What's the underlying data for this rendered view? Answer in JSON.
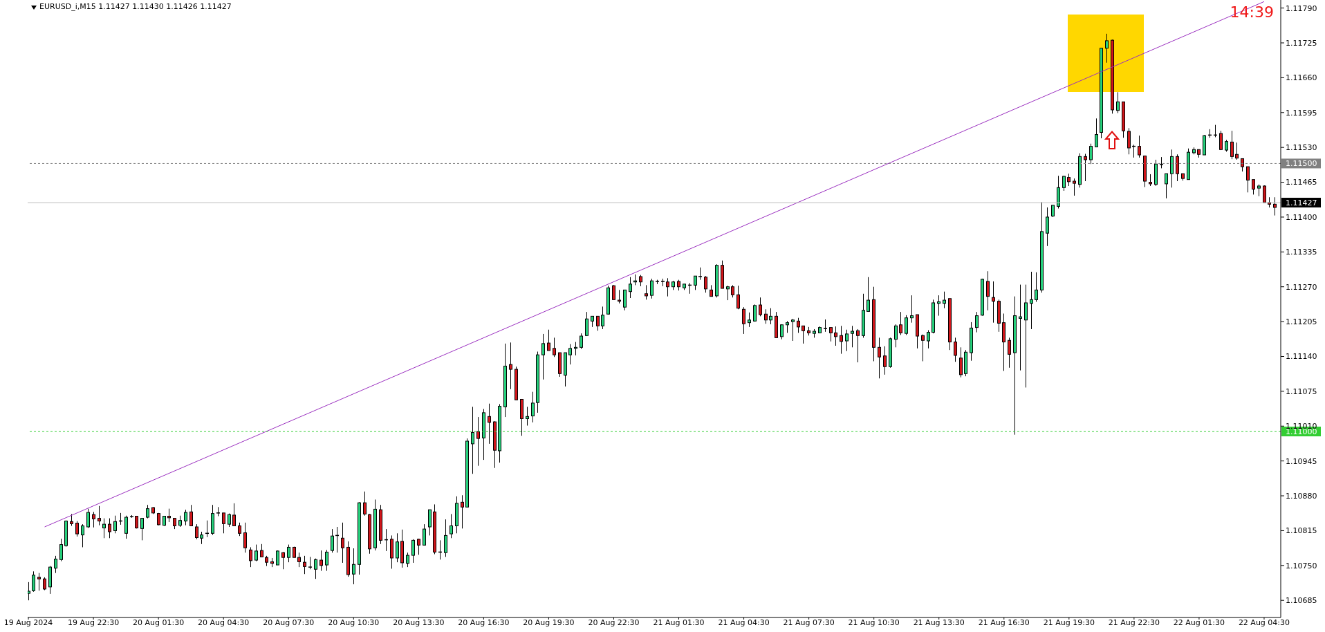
{
  "chart_data": {
    "type": "candlestick",
    "title": "EURUSD_i,M15 1.11427 1.11430 1.11426 1.11427",
    "x": [
      "2024-08-19T19:30",
      "2024-08-19T19:45",
      "2024-08-19T20:00",
      "2024-08-19T20:15",
      "2024-08-19T20:30",
      "2024-08-19T20:45",
      "2024-08-19T21:00",
      "2024-08-19T21:15",
      "2024-08-19T21:30",
      "2024-08-19T21:45",
      "2024-08-19T22:00",
      "2024-08-19T22:15",
      "2024-08-19T22:30",
      "2024-08-19T22:45",
      "2024-08-19T23:00",
      "2024-08-19T23:15",
      "2024-08-19T23:30",
      "2024-08-19T23:45",
      "2024-08-20T00:00",
      "2024-08-20T00:15",
      "2024-08-20T00:30",
      "2024-08-20T00:45",
      "2024-08-20T01:00",
      "2024-08-20T01:15",
      "2024-08-20T01:30",
      "2024-08-20T01:45",
      "2024-08-20T02:00",
      "2024-08-20T02:15",
      "2024-08-20T02:30",
      "2024-08-20T02:45",
      "2024-08-20T03:00",
      "2024-08-20T03:15",
      "2024-08-20T03:30",
      "2024-08-20T03:45",
      "2024-08-20T04:00",
      "2024-08-20T04:15",
      "2024-08-20T04:30",
      "2024-08-20T04:45",
      "2024-08-20T05:00",
      "2024-08-20T05:15",
      "2024-08-20T05:30",
      "2024-08-20T05:45",
      "2024-08-20T06:00",
      "2024-08-20T06:15",
      "2024-08-20T06:30",
      "2024-08-20T06:45",
      "2024-08-20T07:00",
      "2024-08-20T07:15",
      "2024-08-20T07:30",
      "2024-08-20T07:45",
      "2024-08-20T08:00",
      "2024-08-20T08:15",
      "2024-08-20T08:30",
      "2024-08-20T08:45",
      "2024-08-20T09:00",
      "2024-08-20T09:15",
      "2024-08-20T09:30",
      "2024-08-20T09:45",
      "2024-08-20T10:00",
      "2024-08-20T10:15",
      "2024-08-20T10:30",
      "2024-08-20T10:45",
      "2024-08-20T11:00",
      "2024-08-20T11:15",
      "2024-08-20T11:30",
      "2024-08-20T11:45",
      "2024-08-20T12:00",
      "2024-08-20T12:15",
      "2024-08-20T12:30",
      "2024-08-20T12:45",
      "2024-08-20T13:00",
      "2024-08-20T13:15",
      "2024-08-20T13:30",
      "2024-08-20T13:45",
      "2024-08-20T14:00",
      "2024-08-20T14:15",
      "2024-08-20T14:30",
      "2024-08-20T14:45",
      "2024-08-20T15:00",
      "2024-08-20T15:15",
      "2024-08-20T15:30",
      "2024-08-20T15:45",
      "2024-08-20T16:00",
      "2024-08-20T16:15",
      "2024-08-20T16:30",
      "2024-08-20T16:45",
      "2024-08-20T17:00",
      "2024-08-20T17:15",
      "2024-08-20T17:30",
      "2024-08-20T17:45",
      "2024-08-20T18:00",
      "2024-08-20T18:15",
      "2024-08-20T18:30",
      "2024-08-20T18:45",
      "2024-08-20T19:00",
      "2024-08-20T19:15",
      "2024-08-20T19:30",
      "2024-08-20T19:45",
      "2024-08-20T20:00",
      "2024-08-20T20:15",
      "2024-08-20T20:30",
      "2024-08-20T20:45",
      "2024-08-20T21:00",
      "2024-08-20T21:15",
      "2024-08-20T21:30",
      "2024-08-20T21:45",
      "2024-08-20T22:00",
      "2024-08-20T22:15",
      "2024-08-20T22:30",
      "2024-08-20T22:45",
      "2024-08-20T23:00",
      "2024-08-20T23:15",
      "2024-08-20T23:30",
      "2024-08-20T23:45",
      "2024-08-21T00:00",
      "2024-08-21T00:15",
      "2024-08-21T00:30",
      "2024-08-21T00:45",
      "2024-08-21T01:00",
      "2024-08-21T01:15",
      "2024-08-21T01:30",
      "2024-08-21T01:45",
      "2024-08-21T02:00",
      "2024-08-21T02:15",
      "2024-08-21T02:30",
      "2024-08-21T02:45",
      "2024-08-21T03:00",
      "2024-08-21T03:15",
      "2024-08-21T03:30",
      "2024-08-21T03:45",
      "2024-08-21T04:00",
      "2024-08-21T04:15",
      "2024-08-21T04:30",
      "2024-08-21T04:45",
      "2024-08-21T05:00",
      "2024-08-21T05:15",
      "2024-08-21T05:30",
      "2024-08-21T05:45",
      "2024-08-21T06:00",
      "2024-08-21T06:15",
      "2024-08-21T06:30",
      "2024-08-21T06:45",
      "2024-08-21T07:00",
      "2024-08-21T07:15",
      "2024-08-21T07:30",
      "2024-08-21T07:45",
      "2024-08-21T08:00",
      "2024-08-21T08:15",
      "2024-08-21T08:30",
      "2024-08-21T08:45",
      "2024-08-21T09:00",
      "2024-08-21T09:15",
      "2024-08-21T09:30",
      "2024-08-21T09:45",
      "2024-08-21T10:00",
      "2024-08-21T10:15",
      "2024-08-21T10:30",
      "2024-08-21T10:45",
      "2024-08-21T11:00",
      "2024-08-21T11:15",
      "2024-08-21T11:30",
      "2024-08-21T11:45",
      "2024-08-21T12:00",
      "2024-08-21T12:15",
      "2024-08-21T12:30",
      "2024-08-21T12:45",
      "2024-08-21T13:00",
      "2024-08-21T13:15",
      "2024-08-21T13:30",
      "2024-08-21T13:45",
      "2024-08-21T14:00",
      "2024-08-21T14:15",
      "2024-08-21T14:30",
      "2024-08-21T14:45",
      "2024-08-21T15:00",
      "2024-08-21T15:15",
      "2024-08-21T15:30",
      "2024-08-21T15:45",
      "2024-08-21T16:00",
      "2024-08-21T16:15",
      "2024-08-21T16:30",
      "2024-08-21T16:45",
      "2024-08-21T17:00",
      "2024-08-21T17:15",
      "2024-08-21T17:30",
      "2024-08-21T17:45",
      "2024-08-21T18:00",
      "2024-08-21T18:15",
      "2024-08-21T18:30",
      "2024-08-21T18:45",
      "2024-08-21T19:00",
      "2024-08-21T19:15",
      "2024-08-21T19:30",
      "2024-08-21T19:45",
      "2024-08-21T20:00",
      "2024-08-21T20:15",
      "2024-08-21T20:30",
      "2024-08-21T20:45",
      "2024-08-21T21:00",
      "2024-08-21T21:15",
      "2024-08-21T21:30",
      "2024-08-21T21:45",
      "2024-08-21T22:00",
      "2024-08-21T22:15",
      "2024-08-21T22:30",
      "2024-08-21T22:45",
      "2024-08-21T23:00",
      "2024-08-21T23:15",
      "2024-08-21T23:30",
      "2024-08-21T23:45",
      "2024-08-22T00:00",
      "2024-08-22T00:15",
      "2024-08-22T00:30",
      "2024-08-22T00:45",
      "2024-08-22T01:00",
      "2024-08-22T01:15",
      "2024-08-22T01:30",
      "2024-08-22T01:45",
      "2024-08-22T02:00",
      "2024-08-22T02:15",
      "2024-08-22T02:30",
      "2024-08-22T02:45",
      "2024-08-22T03:00",
      "2024-08-22T03:15",
      "2024-08-22T03:30",
      "2024-08-22T03:45",
      "2024-08-22T04:00",
      "2024-08-22T04:15",
      "2024-08-22T04:30",
      "2024-08-22T04:45",
      "2024-08-22T05:00"
    ],
    "ohlc": [
      [
        1.10698,
        1.10719,
        1.10685,
        1.10702
      ],
      [
        1.10703,
        1.10739,
        1.10701,
        1.10732
      ],
      [
        1.10728,
        1.10736,
        1.10703,
        1.10725
      ],
      [
        1.10725,
        1.10728,
        1.10704,
        1.10706
      ],
      [
        1.1071,
        1.10749,
        1.10697,
        1.10747
      ],
      [
        1.10745,
        1.10768,
        1.10736,
        1.10762
      ],
      [
        1.10761,
        1.108,
        1.10758,
        1.10789
      ],
      [
        1.10787,
        1.10834,
        1.10785,
        1.10833
      ],
      [
        1.10832,
        1.10846,
        1.10824,
        1.10828
      ],
      [
        1.10829,
        1.10833,
        1.10804,
        1.10809
      ],
      [
        1.10807,
        1.10827,
        1.10784,
        1.10824
      ],
      [
        1.10822,
        1.10856,
        1.1082,
        1.10849
      ],
      [
        1.10845,
        1.1085,
        1.10821,
        1.10837
      ],
      [
        1.10838,
        1.10861,
        1.10825,
        1.10833
      ],
      [
        1.1082,
        1.10838,
        1.10801,
        1.10827
      ],
      [
        1.10827,
        1.10838,
        1.10801,
        1.10813
      ],
      [
        1.10815,
        1.10843,
        1.1081,
        1.10832
      ],
      [
        1.10833,
        1.10848,
        1.10826,
        1.10833
      ],
      [
        1.1081,
        1.10843,
        1.108,
        1.1084
      ],
      [
        1.10841,
        1.10844,
        1.10839,
        1.10841
      ],
      [
        1.10842,
        1.10842,
        1.10819,
        1.1082
      ],
      [
        1.10819,
        1.10838,
        1.10797,
        1.10838
      ],
      [
        1.1084,
        1.10863,
        1.10838,
        1.10856
      ],
      [
        1.10858,
        1.10859,
        1.10846,
        1.10848
      ],
      [
        1.10847,
        1.10848,
        1.10825,
        1.10826
      ],
      [
        1.10825,
        1.10842,
        1.10824,
        1.10842
      ],
      [
        1.10842,
        1.10856,
        1.10831,
        1.10839
      ],
      [
        1.10838,
        1.10838,
        1.10818,
        1.10824
      ],
      [
        1.10825,
        1.10843,
        1.10822,
        1.10834
      ],
      [
        1.10833,
        1.10854,
        1.10825,
        1.10849
      ],
      [
        1.1085,
        1.10863,
        1.10824,
        1.10824
      ],
      [
        1.10822,
        1.10827,
        1.10799,
        1.10802
      ],
      [
        1.10801,
        1.10813,
        1.1079,
        1.10807
      ],
      [
        1.1081,
        1.10834,
        1.10803,
        1.1081
      ],
      [
        1.1081,
        1.10863,
        1.10807,
        1.10847
      ],
      [
        1.10848,
        1.10859,
        1.10842,
        1.10848
      ],
      [
        1.10848,
        1.10848,
        1.1081,
        1.10828
      ],
      [
        1.10827,
        1.10847,
        1.10822,
        1.10845
      ],
      [
        1.10844,
        1.10866,
        1.10824,
        1.10824
      ],
      [
        1.10824,
        1.1083,
        1.10805,
        1.1081
      ],
      [
        1.10811,
        1.1083,
        1.10774,
        1.10783
      ],
      [
        1.10779,
        1.10784,
        1.10747,
        1.10759
      ],
      [
        1.1076,
        1.10789,
        1.10758,
        1.10777
      ],
      [
        1.10778,
        1.1079,
        1.10766,
        1.10766
      ],
      [
        1.10765,
        1.10768,
        1.10749,
        1.10756
      ],
      [
        1.10757,
        1.10764,
        1.10747,
        1.10754
      ],
      [
        1.10751,
        1.10778,
        1.10751,
        1.10777
      ],
      [
        1.10774,
        1.10775,
        1.10743,
        1.10765
      ],
      [
        1.10765,
        1.10789,
        1.10756,
        1.10784
      ],
      [
        1.10784,
        1.10785,
        1.10765,
        1.10765
      ],
      [
        1.10765,
        1.10774,
        1.10747,
        1.10757
      ],
      [
        1.10756,
        1.10768,
        1.10734,
        1.10748
      ],
      [
        1.10747,
        1.10766,
        1.10743,
        1.10747
      ],
      [
        1.10743,
        1.10763,
        1.10725,
        1.10761
      ],
      [
        1.1076,
        1.10778,
        1.1074,
        1.1075
      ],
      [
        1.10751,
        1.10779,
        1.1074,
        1.10775
      ],
      [
        1.10778,
        1.10818,
        1.10774,
        1.10805
      ],
      [
        1.10806,
        1.10822,
        1.10774,
        1.10806
      ],
      [
        1.10801,
        1.1083,
        1.10755,
        1.10783
      ],
      [
        1.10784,
        1.10795,
        1.10729,
        1.10733
      ],
      [
        1.10734,
        1.10782,
        1.10715,
        1.10752
      ],
      [
        1.10752,
        1.10868,
        1.10733,
        1.10867
      ],
      [
        1.10867,
        1.10888,
        1.10843,
        1.10846
      ],
      [
        1.10845,
        1.10846,
        1.10772,
        1.10781
      ],
      [
        1.10783,
        1.10873,
        1.10778,
        1.10855
      ],
      [
        1.10854,
        1.10863,
        1.1079,
        1.10797
      ],
      [
        1.10798,
        1.10818,
        1.10777,
        1.10798
      ],
      [
        1.10799,
        1.10806,
        1.10744,
        1.10764
      ],
      [
        1.10764,
        1.1081,
        1.10756,
        1.10794
      ],
      [
        1.10795,
        1.10817,
        1.10746,
        1.10755
      ],
      [
        1.10754,
        1.10774,
        1.10747,
        1.10769
      ],
      [
        1.10769,
        1.10799,
        1.10755,
        1.10797
      ],
      [
        1.10799,
        1.108,
        1.1077,
        1.10788
      ],
      [
        1.10788,
        1.10827,
        1.10788,
        1.10818
      ],
      [
        1.10822,
        1.10854,
        1.10806,
        1.10854
      ],
      [
        1.1085,
        1.10864,
        1.10771,
        1.10775
      ],
      [
        1.10775,
        1.10797,
        1.10761,
        1.10775
      ],
      [
        1.10774,
        1.10836,
        1.10766,
        1.10806
      ],
      [
        1.10809,
        1.10846,
        1.10801,
        1.10824
      ],
      [
        1.10824,
        1.10879,
        1.1081,
        1.10866
      ],
      [
        1.10868,
        1.10881,
        1.10819,
        1.10859
      ],
      [
        1.10859,
        1.10987,
        1.10859,
        1.10982
      ],
      [
        1.10977,
        1.11046,
        1.10921,
        1.10998
      ],
      [
        1.11,
        1.11027,
        1.10936,
        1.10987
      ],
      [
        1.10988,
        1.11042,
        1.10947,
        1.11035
      ],
      [
        1.11028,
        1.11052,
        1.10977,
        1.11017
      ],
      [
        1.11018,
        1.11019,
        1.10932,
        1.10965
      ],
      [
        1.10964,
        1.11051,
        1.10942,
        1.11047
      ],
      [
        1.11046,
        1.11164,
        1.11027,
        1.11122
      ],
      [
        1.11125,
        1.11166,
        1.11079,
        1.11116
      ],
      [
        1.11116,
        1.11121,
        1.11059,
        1.11059
      ],
      [
        1.1106,
        1.1106,
        1.10992,
        1.11024
      ],
      [
        1.11024,
        1.11046,
        1.11011,
        1.11028
      ],
      [
        1.11029,
        1.11074,
        1.11017,
        1.11053
      ],
      [
        1.11054,
        1.11149,
        1.11035,
        1.11143
      ],
      [
        1.11143,
        1.11182,
        1.11097,
        1.11164
      ],
      [
        1.11165,
        1.1119,
        1.11151,
        1.11151
      ],
      [
        1.11155,
        1.11175,
        1.11139,
        1.11143
      ],
      [
        1.11147,
        1.11147,
        1.11102,
        1.11108
      ],
      [
        1.11105,
        1.11147,
        1.11084,
        1.11147
      ],
      [
        1.11143,
        1.11163,
        1.11125,
        1.11155
      ],
      [
        1.11155,
        1.11167,
        1.11142,
        1.11157
      ],
      [
        1.11157,
        1.11183,
        1.11154,
        1.11178
      ],
      [
        1.11179,
        1.11223,
        1.11178,
        1.1121
      ],
      [
        1.11206,
        1.11215,
        1.11195,
        1.11215
      ],
      [
        1.11215,
        1.11215,
        1.11188,
        1.11197
      ],
      [
        1.11197,
        1.11233,
        1.11191,
        1.11217
      ],
      [
        1.11219,
        1.11272,
        1.11218,
        1.11268
      ],
      [
        1.11272,
        1.11273,
        1.11246,
        1.11246
      ],
      [
        1.11245,
        1.11264,
        1.11239,
        1.11243
      ],
      [
        1.11232,
        1.11264,
        1.11226,
        1.11264
      ],
      [
        1.11261,
        1.11288,
        1.11249,
        1.11275
      ],
      [
        1.11279,
        1.11293,
        1.11273,
        1.11281
      ],
      [
        1.11289,
        1.11292,
        1.11271,
        1.11279
      ],
      [
        1.11257,
        1.11273,
        1.11246,
        1.11253
      ],
      [
        1.11254,
        1.11285,
        1.11248,
        1.11281
      ],
      [
        1.1128,
        1.11283,
        1.11275,
        1.1128
      ],
      [
        1.1128,
        1.11285,
        1.11271,
        1.1128
      ],
      [
        1.11279,
        1.11286,
        1.11252,
        1.1127
      ],
      [
        1.1127,
        1.11281,
        1.11264,
        1.11279
      ],
      [
        1.1128,
        1.11283,
        1.11263,
        1.1127
      ],
      [
        1.11268,
        1.11275,
        1.11264,
        1.11275
      ],
      [
        1.11273,
        1.11277,
        1.11257,
        1.11273
      ],
      [
        1.11273,
        1.1129,
        1.11264,
        1.1129
      ],
      [
        1.11289,
        1.11306,
        1.11283,
        1.11289
      ],
      [
        1.11288,
        1.1129,
        1.11259,
        1.11266
      ],
      [
        1.11264,
        1.11273,
        1.11252,
        1.11252
      ],
      [
        1.11253,
        1.11312,
        1.1125,
        1.1131
      ],
      [
        1.1131,
        1.11319,
        1.11267,
        1.11267
      ],
      [
        1.11266,
        1.11272,
        1.11245,
        1.1127
      ],
      [
        1.1127,
        1.11273,
        1.1125,
        1.11255
      ],
      [
        1.11255,
        1.11272,
        1.11228,
        1.1123
      ],
      [
        1.11228,
        1.11232,
        1.11182,
        1.11201
      ],
      [
        1.11203,
        1.11222,
        1.11195,
        1.11208
      ],
      [
        1.11206,
        1.11237,
        1.11205,
        1.11235
      ],
      [
        1.11236,
        1.1125,
        1.11215,
        1.11218
      ],
      [
        1.11219,
        1.11228,
        1.11201,
        1.11208
      ],
      [
        1.11208,
        1.1123,
        1.112,
        1.11215
      ],
      [
        1.11215,
        1.11223,
        1.11175,
        1.11175
      ],
      [
        1.11177,
        1.112,
        1.11172,
        1.11199
      ],
      [
        1.11199,
        1.11206,
        1.11184,
        1.11203
      ],
      [
        1.11205,
        1.1121,
        1.11169,
        1.11208
      ],
      [
        1.11206,
        1.11212,
        1.11184,
        1.11195
      ],
      [
        1.11197,
        1.11197,
        1.11164,
        1.11188
      ],
      [
        1.11188,
        1.11195,
        1.11179,
        1.11184
      ],
      [
        1.11183,
        1.11191,
        1.11175,
        1.11187
      ],
      [
        1.11184,
        1.11196,
        1.11184,
        1.11194
      ],
      [
        1.11192,
        1.11209,
        1.11186,
        1.11192
      ],
      [
        1.11194,
        1.11194,
        1.11168,
        1.11184
      ],
      [
        1.11184,
        1.11196,
        1.1116,
        1.11177
      ],
      [
        1.11179,
        1.11197,
        1.11145,
        1.11168
      ],
      [
        1.11169,
        1.1119,
        1.1115,
        1.11182
      ],
      [
        1.11183,
        1.11197,
        1.11157,
        1.11187
      ],
      [
        1.11188,
        1.11191,
        1.11129,
        1.11179
      ],
      [
        1.11179,
        1.11257,
        1.11175,
        1.11226
      ],
      [
        1.11224,
        1.11288,
        1.11224,
        1.11245
      ],
      [
        1.11246,
        1.1127,
        1.11131,
        1.11157
      ],
      [
        1.11157,
        1.11175,
        1.11099,
        1.11139
      ],
      [
        1.11141,
        1.11159,
        1.11106,
        1.11121
      ],
      [
        1.11121,
        1.11175,
        1.11119,
        1.11173
      ],
      [
        1.11172,
        1.112,
        1.11157,
        1.11197
      ],
      [
        1.11199,
        1.11223,
        1.1118,
        1.11184
      ],
      [
        1.11183,
        1.11217,
        1.1118,
        1.11212
      ],
      [
        1.11212,
        1.11254,
        1.11203,
        1.11216
      ],
      [
        1.11218,
        1.11218,
        1.11155,
        1.11178
      ],
      [
        1.11179,
        1.11181,
        1.11131,
        1.1117
      ],
      [
        1.11169,
        1.11189,
        1.11155,
        1.11185
      ],
      [
        1.11185,
        1.11246,
        1.11183,
        1.1124
      ],
      [
        1.11239,
        1.11254,
        1.11216,
        1.11242
      ],
      [
        1.11239,
        1.11261,
        1.1123,
        1.11245
      ],
      [
        1.11248,
        1.11248,
        1.11152,
        1.11167
      ],
      [
        1.11167,
        1.11175,
        1.1113,
        1.11142
      ],
      [
        1.11137,
        1.11157,
        1.11101,
        1.11106
      ],
      [
        1.11108,
        1.11152,
        1.11103,
        1.11148
      ],
      [
        1.11147,
        1.11204,
        1.11132,
        1.11193
      ],
      [
        1.11194,
        1.11223,
        1.11185,
        1.11216
      ],
      [
        1.11217,
        1.11285,
        1.11216,
        1.11284
      ],
      [
        1.1128,
        1.11299,
        1.11226,
        1.11252
      ],
      [
        1.1125,
        1.1128,
        1.11203,
        1.11243
      ],
      [
        1.11243,
        1.11246,
        1.11186,
        1.11202
      ],
      [
        1.11203,
        1.1122,
        1.11113,
        1.11167
      ],
      [
        1.1117,
        1.11175,
        1.11119,
        1.11144
      ],
      [
        1.11147,
        1.11252,
        1.10994,
        1.11216
      ],
      [
        1.11211,
        1.11274,
        1.11114,
        1.11214
      ],
      [
        1.11208,
        1.11274,
        1.11082,
        1.1124
      ],
      [
        1.11239,
        1.11298,
        1.11191,
        1.11246
      ],
      [
        1.11246,
        1.11297,
        1.11242,
        1.11264
      ],
      [
        1.11264,
        1.11428,
        1.11259,
        1.11373
      ],
      [
        1.1137,
        1.11418,
        1.11346,
        1.114
      ],
      [
        1.11402,
        1.11422,
        1.114,
        1.11422
      ],
      [
        1.1142,
        1.11477,
        1.11416,
        1.11455
      ],
      [
        1.11455,
        1.11477,
        1.11449,
        1.11476
      ],
      [
        1.11474,
        1.11481,
        1.11458,
        1.11466
      ],
      [
        1.11467,
        1.11472,
        1.1144,
        1.11463
      ],
      [
        1.11461,
        1.11519,
        1.11455,
        1.11513
      ],
      [
        1.11513,
        1.11518,
        1.11467,
        1.11507
      ],
      [
        1.11507,
        1.11537,
        1.11499,
        1.11532
      ],
      [
        1.11531,
        1.11584,
        1.11531,
        1.11554
      ],
      [
        1.11558,
        1.11715,
        1.11547,
        1.11715
      ],
      [
        1.11715,
        1.11742,
        1.11688,
        1.11729
      ],
      [
        1.1173,
        1.11731,
        1.11593,
        1.116
      ],
      [
        1.11599,
        1.11633,
        1.11594,
        1.11615
      ],
      [
        1.11615,
        1.11615,
        1.11548,
        1.11561
      ],
      [
        1.1156,
        1.11566,
        1.11517,
        1.11529
      ],
      [
        1.11532,
        1.11535,
        1.11511,
        1.11532
      ],
      [
        1.11532,
        1.11552,
        1.11511,
        1.11516
      ],
      [
        1.11514,
        1.11514,
        1.11456,
        1.11467
      ],
      [
        1.11465,
        1.1148,
        1.11458,
        1.11462
      ],
      [
        1.11461,
        1.11507,
        1.11458,
        1.11499
      ],
      [
        1.11498,
        1.11512,
        1.11491,
        1.11498
      ],
      [
        1.11462,
        1.11481,
        1.11435,
        1.11481
      ],
      [
        1.11481,
        1.11526,
        1.11455,
        1.11513
      ],
      [
        1.11513,
        1.11517,
        1.11467,
        1.11481
      ],
      [
        1.11481,
        1.11481,
        1.11468,
        1.11472
      ],
      [
        1.1147,
        1.11528,
        1.1147,
        1.11521
      ],
      [
        1.1152,
        1.1153,
        1.11517,
        1.11526
      ],
      [
        1.11526,
        1.11526,
        1.11511,
        1.11517
      ],
      [
        1.11516,
        1.11553,
        1.11516,
        1.11552
      ],
      [
        1.11553,
        1.11564,
        1.11548,
        1.11553
      ],
      [
        1.11553,
        1.11572,
        1.11549,
        1.11553
      ],
      [
        1.11556,
        1.11561,
        1.11525,
        1.11526
      ],
      [
        1.11525,
        1.11544,
        1.11522,
        1.11541
      ],
      [
        1.1154,
        1.11561,
        1.11508,
        1.11513
      ],
      [
        1.11517,
        1.11539,
        1.11507,
        1.1151
      ],
      [
        1.11509,
        1.11509,
        1.11485,
        1.11494
      ],
      [
        1.11494,
        1.11494,
        1.11446,
        1.11469
      ],
      [
        1.1147,
        1.1147,
        1.11442,
        1.11452
      ],
      [
        1.11454,
        1.11461,
        1.11439,
        1.11458
      ],
      [
        1.11458,
        1.11459,
        1.11427,
        1.11427
      ],
      [
        1.11427,
        1.11437,
        1.11418,
        1.11424
      ],
      [
        1.11424,
        1.11437,
        1.11403,
        1.11418
      ]
    ],
    "colors": [
      "#26d07c",
      "#26d07c",
      "#d0161b",
      "#d0161b",
      "#26d07c",
      "#26d07c",
      "#26d07c",
      "#26d07c",
      "#d0161b",
      "#d0161b",
      "#26d07c",
      "#26d07c",
      "#d0161b",
      "#d0161b",
      "#26d07c",
      "#d0161b",
      "#26d07c",
      "#000000",
      "#26d07c",
      "#000000",
      "#d0161b",
      "#26d07c",
      "#26d07c",
      "#d0161b",
      "#d0161b",
      "#26d07c",
      "#d0161b",
      "#d0161b",
      "#26d07c",
      "#26d07c",
      "#d0161b",
      "#d0161b",
      "#26d07c",
      "#000000",
      "#26d07c",
      "#000000",
      "#d0161b",
      "#26d07c",
      "#d0161b",
      "#d0161b",
      "#d0161b",
      "#d0161b",
      "#26d07c",
      "#d0161b",
      "#d0161b",
      "#d0161b",
      "#26d07c",
      "#d0161b",
      "#26d07c",
      "#d0161b",
      "#d0161b",
      "#d0161b",
      "#000000",
      "#26d07c",
      "#d0161b",
      "#26d07c",
      "#26d07c",
      "#000000",
      "#d0161b",
      "#d0161b",
      "#26d07c",
      "#26d07c",
      "#d0161b",
      "#d0161b",
      "#26d07c",
      "#d0161b",
      "#000000",
      "#d0161b",
      "#26d07c",
      "#d0161b",
      "#26d07c",
      "#26d07c",
      "#d0161b",
      "#26d07c",
      "#26d07c",
      "#d0161b",
      "#000000",
      "#26d07c",
      "#26d07c",
      "#26d07c",
      "#d0161b",
      "#26d07c",
      "#26d07c",
      "#d0161b",
      "#26d07c",
      "#d0161b",
      "#d0161b",
      "#26d07c",
      "#26d07c",
      "#d0161b",
      "#d0161b",
      "#d0161b",
      "#26d07c",
      "#26d07c",
      "#26d07c",
      "#26d07c",
      "#d0161b",
      "#d0161b",
      "#d0161b",
      "#26d07c",
      "#26d07c",
      "#26d07c",
      "#26d07c",
      "#26d07c",
      "#26d07c",
      "#d0161b",
      "#26d07c",
      "#26d07c",
      "#d0161b",
      "#d0161b",
      "#26d07c",
      "#26d07c",
      "#26d07c",
      "#d0161b",
      "#d0161b",
      "#26d07c",
      "#000000",
      "#000000",
      "#d0161b",
      "#26d07c",
      "#d0161b",
      "#26d07c",
      "#000000",
      "#26d07c",
      "#000000",
      "#d0161b",
      "#d0161b",
      "#26d07c",
      "#d0161b",
      "#26d07c",
      "#d0161b",
      "#d0161b",
      "#d0161b",
      "#26d07c",
      "#26d07c",
      "#d0161b",
      "#d0161b",
      "#26d07c",
      "#d0161b",
      "#26d07c",
      "#26d07c",
      "#26d07c",
      "#d0161b",
      "#d0161b",
      "#d0161b",
      "#26d07c",
      "#26d07c",
      "#000000",
      "#d0161b",
      "#d0161b",
      "#d0161b",
      "#26d07c",
      "#26d07c",
      "#d0161b",
      "#26d07c",
      "#26d07c",
      "#d0161b",
      "#d0161b",
      "#d0161b",
      "#26d07c",
      "#26d07c",
      "#d0161b",
      "#26d07c",
      "#26d07c",
      "#d0161b",
      "#d0161b",
      "#26d07c",
      "#26d07c",
      "#26d07c",
      "#26d07c",
      "#d0161b",
      "#d0161b",
      "#d0161b",
      "#26d07c",
      "#26d07c",
      "#26d07c",
      "#26d07c",
      "#d0161b",
      "#d0161b",
      "#d0161b",
      "#d0161b",
      "#d0161b",
      "#26d07c",
      "#26d07c",
      "#26d07c",
      "#26d07c",
      "#26d07c",
      "#26d07c",
      "#26d07c",
      "#26d07c",
      "#26d07c",
      "#26d07c",
      "#d0161b",
      "#d0161b",
      "#26d07c",
      "#d0161b",
      "#26d07c",
      "#26d07c",
      "#26d07c",
      "#26d07c",
      "#d0161b",
      "#26d07c",
      "#d0161b",
      "#d0161b",
      "#000000",
      "#d0161b",
      "#d0161b",
      "#d0161b",
      "#26d07c",
      "#000000",
      "#26d07c",
      "#26d07c",
      "#d0161b",
      "#d0161b",
      "#26d07c",
      "#26d07c",
      "#d0161b",
      "#26d07c",
      "#000000",
      "#000000",
      "#d0161b",
      "#26d07c",
      "#d0161b",
      "#d0161b",
      "#d0161b",
      "#d0161b",
      "#d0161b",
      "#26d07c",
      "#d0161b",
      "#d0161b",
      "#d0161b"
    ],
    "series": [
      {
        "type": "line",
        "x": [
          "2024-08-19T20:15",
          "2024-08-22T04:30"
        ],
        "values": [
          1.10822,
          1.11802
        ],
        "color": "#9b30c0"
      }
    ],
    "xlim": [
      "2024-08-19T19:28",
      "2024-08-22T05:16"
    ],
    "xticks": [
      {
        "value": "2024-08-19T19:30",
        "label": "19 Aug 2024"
      },
      {
        "value": "2024-08-19T22:30",
        "label": "19 Aug 22:30"
      },
      {
        "value": "2024-08-20T01:30",
        "label": "20 Aug 01:30"
      },
      {
        "value": "2024-08-20T04:30",
        "label": "20 Aug 04:30"
      },
      {
        "value": "2024-08-20T07:30",
        "label": "20 Aug 07:30"
      },
      {
        "value": "2024-08-20T10:30",
        "label": "20 Aug 10:30"
      },
      {
        "value": "2024-08-20T13:30",
        "label": "20 Aug 13:30"
      },
      {
        "value": "2024-08-20T16:30",
        "label": "20 Aug 16:30"
      },
      {
        "value": "2024-08-20T19:30",
        "label": "20 Aug 19:30"
      },
      {
        "value": "2024-08-20T22:30",
        "label": "20 Aug 22:30"
      },
      {
        "value": "2024-08-21T01:30",
        "label": "21 Aug 01:30"
      },
      {
        "value": "2024-08-21T04:30",
        "label": "21 Aug 04:30"
      },
      {
        "value": "2024-08-21T07:30",
        "label": "21 Aug 07:30"
      },
      {
        "value": "2024-08-21T10:30",
        "label": "21 Aug 10:30"
      },
      {
        "value": "2024-08-21T13:30",
        "label": "21 Aug 13:30"
      },
      {
        "value": "2024-08-21T16:30",
        "label": "21 Aug 16:30"
      },
      {
        "value": "2024-08-21T19:30",
        "label": "21 Aug 19:30"
      },
      {
        "value": "2024-08-21T22:30",
        "label": "21 Aug 22:30"
      },
      {
        "value": "2024-08-22T01:30",
        "label": "22 Aug 01:30"
      },
      {
        "value": "2024-08-22T04:30",
        "label": "22 Aug 04:30"
      }
    ],
    "ylim": [
      1.10653,
      1.11805
    ],
    "yticks": [
      {
        "value": 1.1179,
        "label": "1.11790"
      },
      1.11725,
      {
        "value": 1.1166,
        "label": "1.11660"
      },
      1.11595,
      {
        "value": 1.1153,
        "label": "1.11530"
      },
      1.11465,
      {
        "value": 1.114,
        "label": "1.11400"
      },
      1.11335,
      {
        "value": 1.1127,
        "label": "1.11270"
      },
      1.11205,
      {
        "value": 1.1114,
        "label": "1.11140"
      },
      1.11075,
      {
        "value": 1.1101,
        "label": "1.11010"
      },
      1.10945,
      {
        "value": 1.1088,
        "label": "1.10880"
      },
      1.10815,
      {
        "value": 1.1075,
        "label": "1.10750"
      },
      1.10685
    ],
    "ref_lines": [
      {
        "axis": "y",
        "value": 1.115,
        "label": "1.11500",
        "color": "#808080",
        "line_style": "dashed"
      },
      {
        "axis": "y",
        "value": 1.11427,
        "label": "1.11427",
        "color": "#c0c0c0",
        "line_style": "solid"
      },
      {
        "axis": "y",
        "value": 1.11,
        "label": "1.11000",
        "color": "#32cd32",
        "line_style": "dashed"
      }
    ],
    "annotations": [
      "14:39"
    ]
  }
}
